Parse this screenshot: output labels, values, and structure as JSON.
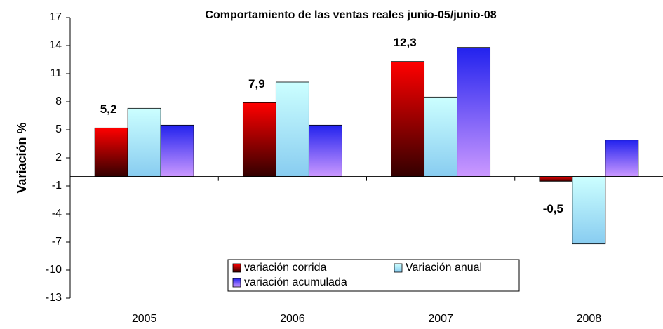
{
  "chart_data": {
    "type": "bar",
    "title": "Comportamiento de las ventas reales junio-05/junio-08",
    "y_label": "Variación %",
    "categories": [
      "2005",
      "2006",
      "2007",
      "2008"
    ],
    "series": [
      {
        "name": "variación corrida",
        "color": "#ff0000",
        "values": [
          5.2,
          7.9,
          12.3,
          -0.5
        ],
        "value_labels": [
          "5,2",
          "7,9",
          "12,3",
          "-0,5"
        ]
      },
      {
        "name": "Variación anual",
        "color": "#ccffff",
        "values": [
          7.3,
          10.1,
          8.5,
          -7.2
        ]
      },
      {
        "name": "variación acumulada",
        "color": "#2222ee",
        "values": [
          5.5,
          5.5,
          13.8,
          3.9
        ]
      }
    ],
    "ylim": [
      -13,
      17
    ],
    "yticks": [
      17,
      14,
      11,
      8,
      5,
      2,
      -1,
      -4,
      -7,
      -10,
      -13
    ],
    "legend": "bottom-center"
  }
}
